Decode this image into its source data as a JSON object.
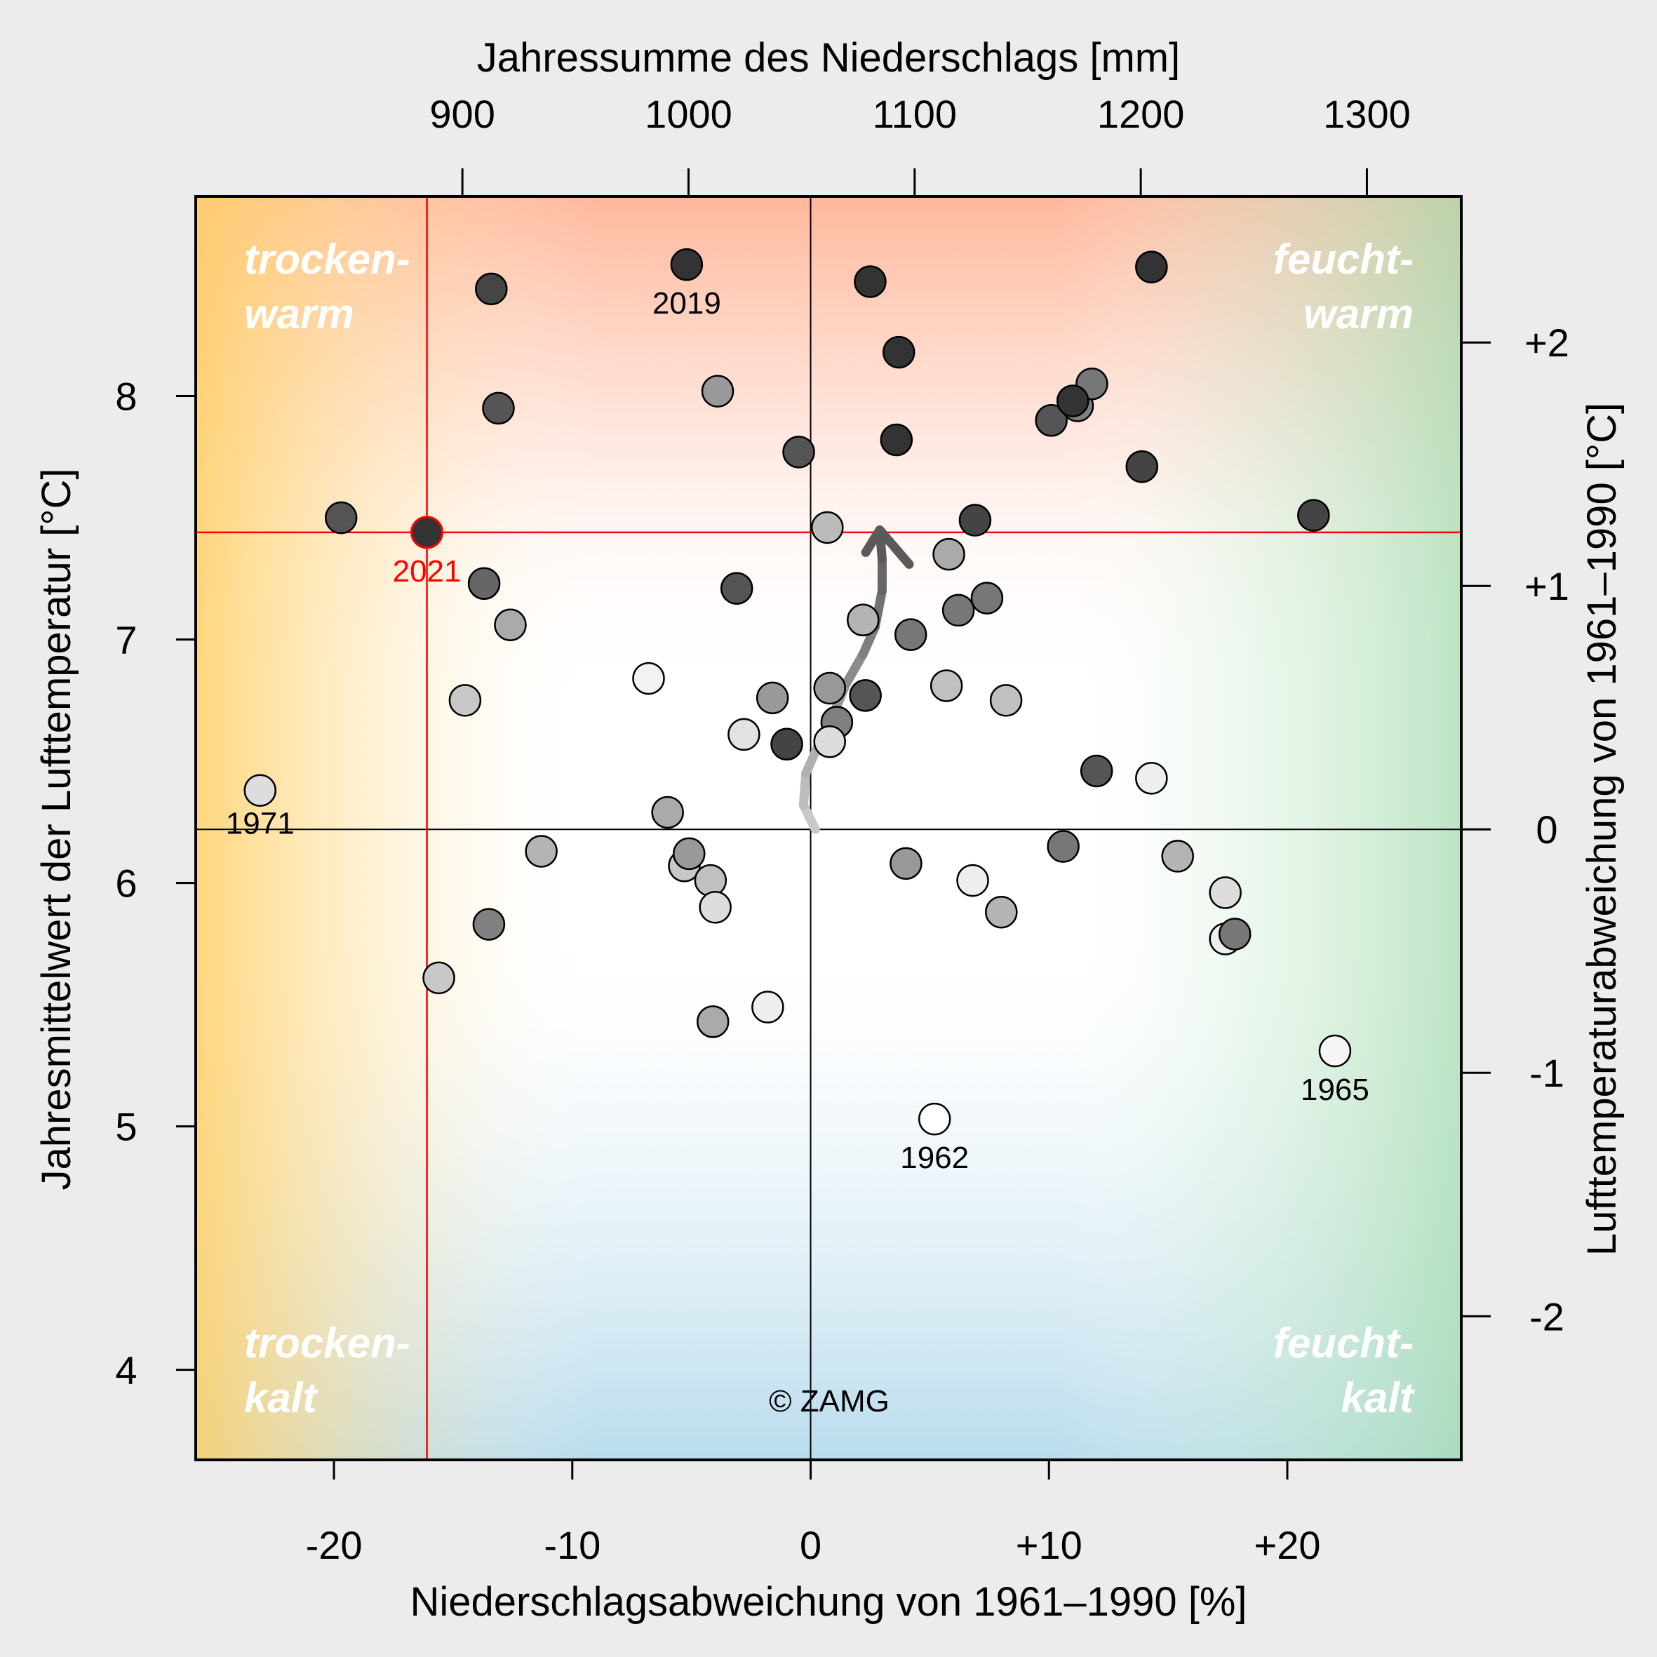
{
  "chart_data": {
    "type": "scatter",
    "title": "",
    "xlabel": "Niederschlagsabweichung von 1961–1990 [%]",
    "ylabel": "Jahresmittelwert der Lufttemperatur [°C]",
    "x2label": "Jahressumme des Niederschlags [mm]",
    "y2label": "Lufttemperaturabweichung von 1961–1990 [°C]",
    "xlim": [
      -25.8,
      27.3
    ],
    "ylim": [
      3.63,
      8.82
    ],
    "x_ticks": [
      {
        "v": -20,
        "label": "-20"
      },
      {
        "v": -10,
        "label": "-10"
      },
      {
        "v": 0,
        "label": "0"
      },
      {
        "v": 10,
        "label": "+10"
      },
      {
        "v": 20,
        "label": "+20"
      }
    ],
    "y_ticks": [
      {
        "v": 4,
        "label": "4"
      },
      {
        "v": 5,
        "label": "5"
      },
      {
        "v": 6,
        "label": "6"
      },
      {
        "v": 7,
        "label": "7"
      },
      {
        "v": 8,
        "label": "8"
      }
    ],
    "x2_ticks": [
      {
        "mm": 900,
        "label": "900"
      },
      {
        "mm": 1000,
        "label": "1000"
      },
      {
        "mm": 1100,
        "label": "1100"
      },
      {
        "mm": 1200,
        "label": "1200"
      },
      {
        "mm": 1300,
        "label": "1300"
      }
    ],
    "y2_ticks": [
      {
        "v": 2,
        "label": "+2"
      },
      {
        "v": 1,
        "label": "+1"
      },
      {
        "v": 0,
        "label": "0"
      },
      {
        "v": -1,
        "label": "-1"
      },
      {
        "v": -2,
        "label": "-2"
      }
    ],
    "reference_precip_mm": 1054,
    "reference_temp_c": 6.22,
    "quadrant_labels": {
      "top_left": [
        "trocken-",
        "warm"
      ],
      "top_right": [
        "feucht-",
        "warm"
      ],
      "bottom_left": [
        "trocken-",
        "kalt"
      ],
      "bottom_right": [
        "feucht-",
        "kalt"
      ]
    },
    "highlight": {
      "year": "2021",
      "x": -16.1,
      "y": 7.44,
      "color": "#ff0000"
    },
    "labeled_years": [
      {
        "year": "2019",
        "x": -5.2,
        "y": 8.54
      },
      {
        "year": "1971",
        "x": -23.1,
        "y": 6.38
      },
      {
        "year": "1962",
        "x": 5.2,
        "y": 5.03
      },
      {
        "year": "1965",
        "x": 22.0,
        "y": 5.31
      }
    ],
    "points": [
      {
        "x": -19.7,
        "y": 7.5,
        "shade": "#555555"
      },
      {
        "x": -13.4,
        "y": 8.44,
        "shade": "#454545"
      },
      {
        "x": -13.1,
        "y": 7.95,
        "shade": "#555555"
      },
      {
        "x": -13.7,
        "y": 7.23,
        "shade": "#666666"
      },
      {
        "x": -12.6,
        "y": 7.06,
        "shade": "#aaaaaa"
      },
      {
        "x": -14.5,
        "y": 6.75,
        "shade": "#c8c8c8"
      },
      {
        "x": -11.3,
        "y": 6.13,
        "shade": "#b4b4b4"
      },
      {
        "x": -13.5,
        "y": 5.83,
        "shade": "#808080"
      },
      {
        "x": -15.6,
        "y": 5.61,
        "shade": "#c8c8c8"
      },
      {
        "x": -23.1,
        "y": 6.38,
        "shade": "#dddddd"
      },
      {
        "x": -5.2,
        "y": 8.54,
        "shade": "#333333"
      },
      {
        "x": -3.9,
        "y": 8.02,
        "shade": "#999999"
      },
      {
        "x": -0.5,
        "y": 7.77,
        "shade": "#555555"
      },
      {
        "x": -3.1,
        "y": 7.21,
        "shade": "#555555"
      },
      {
        "x": -6.8,
        "y": 6.84,
        "shade": "#f2f2f2"
      },
      {
        "x": -1.6,
        "y": 6.76,
        "shade": "#999999"
      },
      {
        "x": -2.8,
        "y": 6.61,
        "shade": "#e2e2e2"
      },
      {
        "x": -1.0,
        "y": 6.57,
        "shade": "#444444"
      },
      {
        "x": -6.0,
        "y": 6.29,
        "shade": "#aaaaaa"
      },
      {
        "x": -5.3,
        "y": 6.07,
        "shade": "#c8c8c8"
      },
      {
        "x": -5.1,
        "y": 6.12,
        "shade": "#999999"
      },
      {
        "x": -4.2,
        "y": 6.01,
        "shade": "#c0c0c0"
      },
      {
        "x": -4.0,
        "y": 5.9,
        "shade": "#dddddd"
      },
      {
        "x": -4.1,
        "y": 5.43,
        "shade": "#aaaaaa"
      },
      {
        "x": -1.8,
        "y": 5.49,
        "shade": "#eeeeee"
      },
      {
        "x": 2.5,
        "y": 8.47,
        "shade": "#333333"
      },
      {
        "x": 3.7,
        "y": 8.18,
        "shade": "#333333"
      },
      {
        "x": 3.6,
        "y": 7.82,
        "shade": "#333333"
      },
      {
        "x": 0.7,
        "y": 7.46,
        "shade": "#bbbbbb"
      },
      {
        "x": 2.2,
        "y": 7.08,
        "shade": "#b4b4b4"
      },
      {
        "x": 4.2,
        "y": 7.02,
        "shade": "#777777"
      },
      {
        "x": 0.8,
        "y": 6.8,
        "shade": "#999999"
      },
      {
        "x": 2.3,
        "y": 6.77,
        "shade": "#555555"
      },
      {
        "x": 1.1,
        "y": 6.66,
        "shade": "#808080"
      },
      {
        "x": 0.8,
        "y": 6.58,
        "shade": "#dddddd"
      },
      {
        "x": 4.0,
        "y": 6.08,
        "shade": "#999999"
      },
      {
        "x": 5.2,
        "y": 5.03,
        "shade": "#ffffff"
      },
      {
        "x": 5.8,
        "y": 7.35,
        "shade": "#aaaaaa"
      },
      {
        "x": 6.9,
        "y": 7.49,
        "shade": "#444444"
      },
      {
        "x": 6.2,
        "y": 7.12,
        "shade": "#777777"
      },
      {
        "x": 7.4,
        "y": 7.17,
        "shade": "#777777"
      },
      {
        "x": 5.7,
        "y": 6.81,
        "shade": "#c0c0c0"
      },
      {
        "x": 8.2,
        "y": 6.75,
        "shade": "#c0c0c0"
      },
      {
        "x": 6.8,
        "y": 6.01,
        "shade": "#eeeeee"
      },
      {
        "x": 8.0,
        "y": 5.88,
        "shade": "#b4b4b4"
      },
      {
        "x": 10.1,
        "y": 7.9,
        "shade": "#555555"
      },
      {
        "x": 11.2,
        "y": 7.96,
        "shade": "#808080"
      },
      {
        "x": 11.8,
        "y": 8.05,
        "shade": "#777777"
      },
      {
        "x": 11.0,
        "y": 7.98,
        "shade": "#333333"
      },
      {
        "x": 13.9,
        "y": 7.71,
        "shade": "#444444"
      },
      {
        "x": 14.3,
        "y": 8.53,
        "shade": "#333333"
      },
      {
        "x": 21.1,
        "y": 7.51,
        "shade": "#444444"
      },
      {
        "x": 12.0,
        "y": 6.46,
        "shade": "#555555"
      },
      {
        "x": 14.3,
        "y": 6.43,
        "shade": "#eeeeee"
      },
      {
        "x": 10.6,
        "y": 6.15,
        "shade": "#777777"
      },
      {
        "x": 15.4,
        "y": 6.11,
        "shade": "#b4b4b4"
      },
      {
        "x": 17.4,
        "y": 5.96,
        "shade": "#dddddd"
      },
      {
        "x": 17.4,
        "y": 5.77,
        "shade": "#eeeeee"
      },
      {
        "x": 17.8,
        "y": 5.79,
        "shade": "#777777"
      },
      {
        "x": 22.0,
        "y": 5.31,
        "shade": "#f5f5f5"
      }
    ],
    "trend": [
      {
        "x": 0.2,
        "y": 6.22
      },
      {
        "x": -0.3,
        "y": 6.32
      },
      {
        "x": -0.2,
        "y": 6.45
      },
      {
        "x": 0.3,
        "y": 6.56
      },
      {
        "x": 0.9,
        "y": 6.68
      },
      {
        "x": 1.5,
        "y": 6.82
      },
      {
        "x": 2.2,
        "y": 6.94
      },
      {
        "x": 2.7,
        "y": 7.05
      },
      {
        "x": 3.0,
        "y": 7.2
      },
      {
        "x": 3.0,
        "y": 7.33
      },
      {
        "x": 2.9,
        "y": 7.45
      }
    ],
    "copyright": "© ZAMG"
  }
}
